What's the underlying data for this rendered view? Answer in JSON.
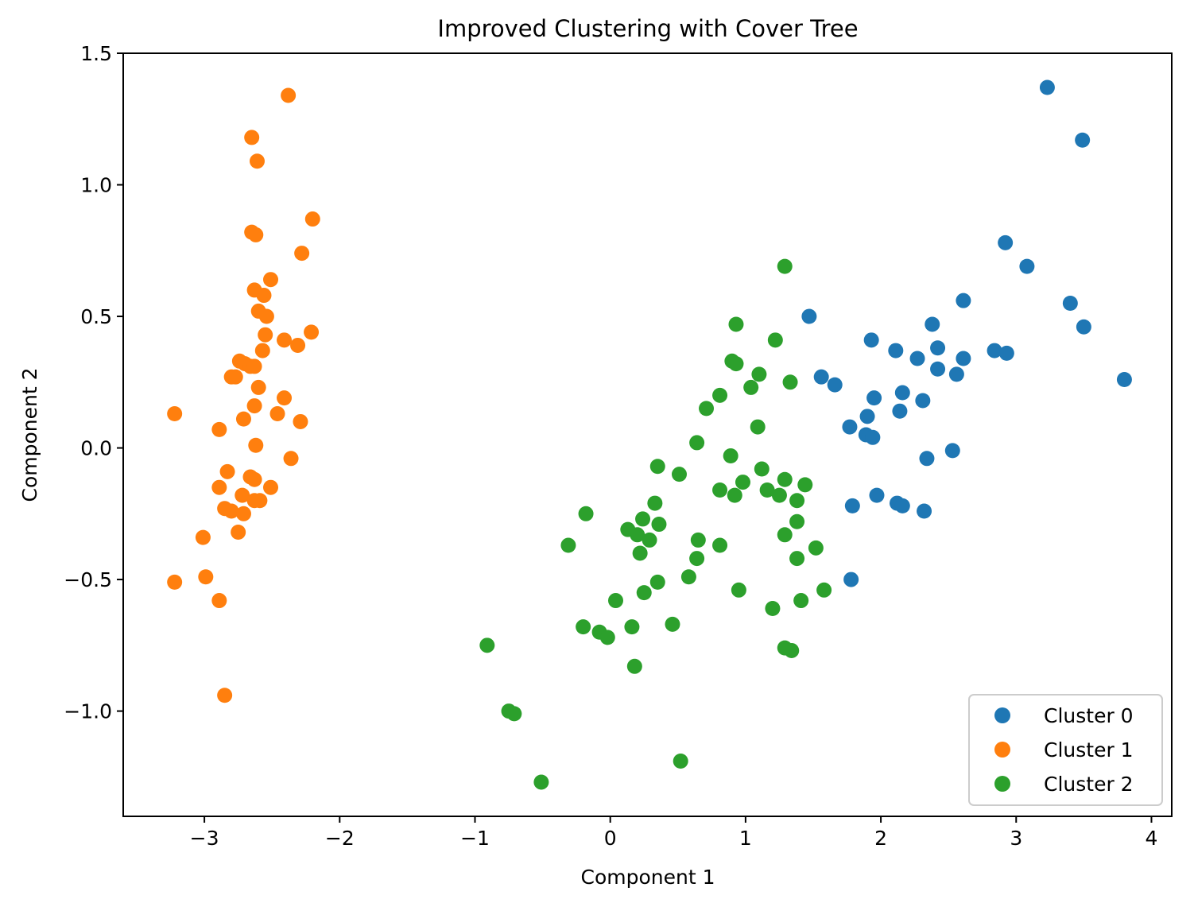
{
  "chart_data": {
    "type": "scatter",
    "title": "Improved Clustering with Cover Tree",
    "xlabel": "Component 1",
    "ylabel": "Component 2",
    "xlim": [
      -3.6,
      4.15
    ],
    "ylim": [
      -1.4,
      1.5
    ],
    "xticks": [
      -3,
      -2,
      -1,
      0,
      1,
      2,
      3,
      4
    ],
    "yticks": [
      -1.0,
      -0.5,
      0.0,
      0.5,
      1.0,
      1.5
    ],
    "xtick_labels": [
      "−3",
      "−2",
      "−1",
      "0",
      "1",
      "2",
      "3",
      "4"
    ],
    "ytick_labels": [
      "−1.0",
      "−0.5",
      "0.0",
      "0.5",
      "1.0",
      "1.5"
    ],
    "grid": false,
    "legend_position": "lower-right",
    "series": [
      {
        "name": "Cluster 0",
        "color": "#1f77b4",
        "points": [
          [
            3.23,
            1.37
          ],
          [
            3.49,
            1.17
          ],
          [
            2.92,
            0.78
          ],
          [
            3.08,
            0.69
          ],
          [
            3.4,
            0.55
          ],
          [
            3.5,
            0.46
          ],
          [
            3.8,
            0.26
          ],
          [
            2.61,
            0.56
          ],
          [
            2.38,
            0.47
          ],
          [
            2.42,
            0.38
          ],
          [
            2.61,
            0.34
          ],
          [
            2.84,
            0.37
          ],
          [
            2.93,
            0.36
          ],
          [
            2.42,
            0.3
          ],
          [
            2.56,
            0.28
          ],
          [
            1.47,
            0.5
          ],
          [
            1.93,
            0.41
          ],
          [
            2.11,
            0.37
          ],
          [
            2.27,
            0.34
          ],
          [
            1.56,
            0.27
          ],
          [
            1.66,
            0.24
          ],
          [
            1.95,
            0.19
          ],
          [
            2.16,
            0.21
          ],
          [
            2.31,
            0.18
          ],
          [
            2.14,
            0.14
          ],
          [
            1.9,
            0.12
          ],
          [
            1.77,
            0.08
          ],
          [
            1.89,
            0.05
          ],
          [
            1.94,
            0.04
          ],
          [
            2.34,
            -0.04
          ],
          [
            2.53,
            -0.01
          ],
          [
            1.79,
            -0.22
          ],
          [
            1.97,
            -0.18
          ],
          [
            2.12,
            -0.21
          ],
          [
            2.16,
            -0.22
          ],
          [
            2.32,
            -0.24
          ],
          [
            1.78,
            -0.5
          ]
        ]
      },
      {
        "name": "Cluster 1",
        "color": "#ff7f0e",
        "points": [
          [
            -2.38,
            1.34
          ],
          [
            -2.65,
            1.18
          ],
          [
            -2.61,
            1.09
          ],
          [
            -2.2,
            0.87
          ],
          [
            -2.65,
            0.82
          ],
          [
            -2.62,
            0.81
          ],
          [
            -2.28,
            0.74
          ],
          [
            -2.51,
            0.64
          ],
          [
            -2.63,
            0.6
          ],
          [
            -2.56,
            0.58
          ],
          [
            -2.6,
            0.52
          ],
          [
            -2.54,
            0.5
          ],
          [
            -2.55,
            0.43
          ],
          [
            -2.21,
            0.44
          ],
          [
            -2.41,
            0.41
          ],
          [
            -2.31,
            0.39
          ],
          [
            -2.57,
            0.37
          ],
          [
            -2.74,
            0.33
          ],
          [
            -2.7,
            0.32
          ],
          [
            -2.66,
            0.31
          ],
          [
            -2.63,
            0.31
          ],
          [
            -2.8,
            0.27
          ],
          [
            -2.77,
            0.27
          ],
          [
            -2.6,
            0.23
          ],
          [
            -2.41,
            0.19
          ],
          [
            -2.63,
            0.16
          ],
          [
            -2.46,
            0.13
          ],
          [
            -2.71,
            0.11
          ],
          [
            -2.29,
            0.1
          ],
          [
            -3.22,
            0.13
          ],
          [
            -2.89,
            0.07
          ],
          [
            -2.62,
            0.01
          ],
          [
            -2.36,
            -0.04
          ],
          [
            -2.83,
            -0.09
          ],
          [
            -2.66,
            -0.11
          ],
          [
            -2.63,
            -0.12
          ],
          [
            -2.51,
            -0.15
          ],
          [
            -2.89,
            -0.15
          ],
          [
            -2.72,
            -0.18
          ],
          [
            -2.59,
            -0.2
          ],
          [
            -2.63,
            -0.2
          ],
          [
            -2.85,
            -0.23
          ],
          [
            -2.8,
            -0.24
          ],
          [
            -2.71,
            -0.25
          ],
          [
            -2.75,
            -0.32
          ],
          [
            -3.01,
            -0.34
          ],
          [
            -2.99,
            -0.49
          ],
          [
            -3.22,
            -0.51
          ],
          [
            -2.89,
            -0.58
          ],
          [
            -2.85,
            -0.94
          ]
        ]
      },
      {
        "name": "Cluster 2",
        "color": "#2ca02c",
        "points": [
          [
            1.29,
            0.69
          ],
          [
            0.93,
            0.47
          ],
          [
            1.22,
            0.41
          ],
          [
            0.9,
            0.33
          ],
          [
            0.93,
            0.32
          ],
          [
            1.1,
            0.28
          ],
          [
            1.33,
            0.25
          ],
          [
            1.04,
            0.23
          ],
          [
            0.81,
            0.2
          ],
          [
            0.71,
            0.15
          ],
          [
            1.09,
            0.08
          ],
          [
            0.64,
            0.02
          ],
          [
            0.89,
            -0.03
          ],
          [
            0.35,
            -0.07
          ],
          [
            1.12,
            -0.08
          ],
          [
            0.51,
            -0.1
          ],
          [
            1.29,
            -0.12
          ],
          [
            0.98,
            -0.13
          ],
          [
            1.44,
            -0.14
          ],
          [
            0.81,
            -0.16
          ],
          [
            1.16,
            -0.16
          ],
          [
            0.92,
            -0.18
          ],
          [
            1.25,
            -0.18
          ],
          [
            1.38,
            -0.2
          ],
          [
            0.33,
            -0.21
          ],
          [
            -0.18,
            -0.25
          ],
          [
            0.24,
            -0.27
          ],
          [
            0.36,
            -0.29
          ],
          [
            1.38,
            -0.28
          ],
          [
            0.13,
            -0.31
          ],
          [
            0.2,
            -0.33
          ],
          [
            0.29,
            -0.35
          ],
          [
            1.29,
            -0.33
          ],
          [
            0.65,
            -0.35
          ],
          [
            -0.31,
            -0.37
          ],
          [
            0.81,
            -0.37
          ],
          [
            1.52,
            -0.38
          ],
          [
            0.22,
            -0.4
          ],
          [
            0.64,
            -0.42
          ],
          [
            1.38,
            -0.42
          ],
          [
            0.58,
            -0.49
          ],
          [
            0.35,
            -0.51
          ],
          [
            0.25,
            -0.55
          ],
          [
            0.95,
            -0.54
          ],
          [
            1.58,
            -0.54
          ],
          [
            1.41,
            -0.58
          ],
          [
            0.04,
            -0.58
          ],
          [
            1.2,
            -0.61
          ],
          [
            -0.2,
            -0.68
          ],
          [
            0.16,
            -0.68
          ],
          [
            0.46,
            -0.67
          ],
          [
            -0.08,
            -0.7
          ],
          [
            -0.02,
            -0.72
          ],
          [
            -0.91,
            -0.75
          ],
          [
            1.29,
            -0.76
          ],
          [
            1.34,
            -0.77
          ],
          [
            0.18,
            -0.83
          ],
          [
            -0.75,
            -1.0
          ],
          [
            -0.71,
            -1.01
          ],
          [
            0.52,
            -1.19
          ],
          [
            -0.51,
            -1.27
          ]
        ]
      }
    ]
  }
}
